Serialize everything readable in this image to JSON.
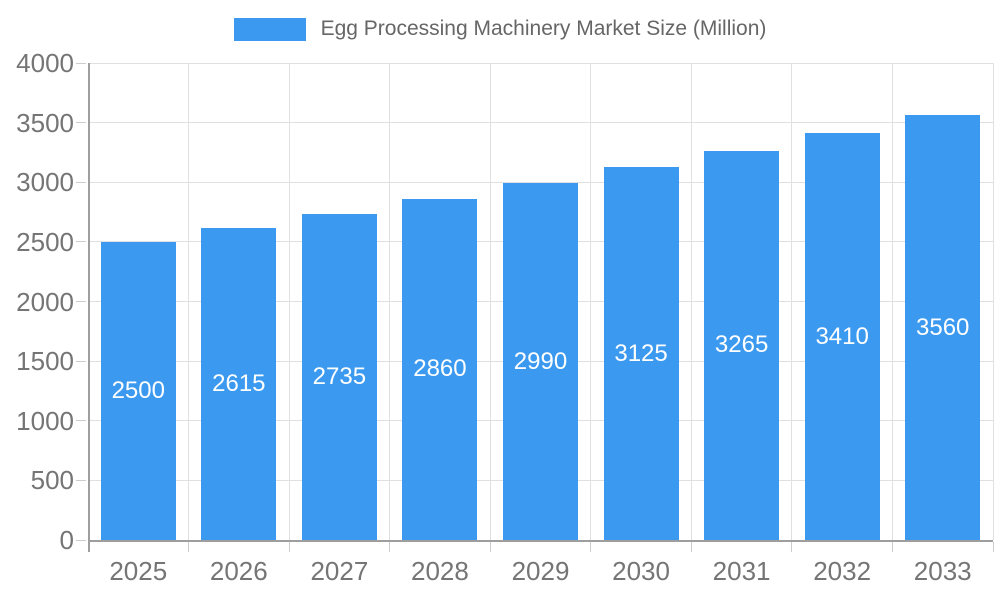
{
  "legend": {
    "label": "Egg Processing Machinery Market Size (Million)"
  },
  "chart_data": {
    "type": "bar",
    "title": "Egg Processing Machinery Market Size (Million)",
    "categories": [
      "2025",
      "2026",
      "2027",
      "2028",
      "2029",
      "2030",
      "2031",
      "2032",
      "2033"
    ],
    "values": [
      2500,
      2615,
      2735,
      2860,
      2990,
      3125,
      3265,
      3410,
      3560
    ],
    "xlabel": "",
    "ylabel": "",
    "ylim": [
      0,
      4000
    ],
    "yticks": [
      0,
      500,
      1000,
      1500,
      2000,
      2500,
      3000,
      3500,
      4000
    ],
    "grid": true,
    "legend_position": "top-center",
    "bar_label_position": "center-inside",
    "colors": {
      "bar": "#3B99F0",
      "bar_label": "#ffffff",
      "axis_line": "#9e9e9e",
      "gridline": "#e0e0e0",
      "tick": "#cccccc",
      "tick_label": "#757575",
      "legend_text": "#666666",
      "background": "#ffffff"
    }
  }
}
